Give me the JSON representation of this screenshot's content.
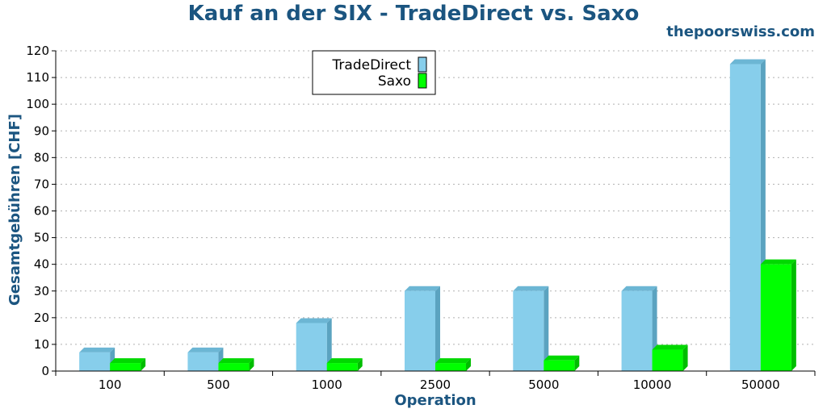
{
  "brand": "thepoorswiss.com",
  "colors": {
    "title": "#1b5580",
    "tradedirect": "#87ceeb",
    "tradedirect_side": "#5ba3c0",
    "tradedirect_top": "#6cb6d4",
    "saxo": "#00ff00",
    "saxo_side": "#00bd00",
    "saxo_top": "#00d800"
  },
  "chart_data": {
    "type": "bar",
    "title": "Kauf an der SIX - TradeDirect vs. Saxo",
    "xlabel": "Operation",
    "ylabel": "Gesamtgebühren [CHF]",
    "categories": [
      "100",
      "500",
      "1000",
      "2500",
      "5000",
      "10000",
      "50000"
    ],
    "series": [
      {
        "name": "TradeDirect",
        "values": [
          7,
          7,
          18,
          30,
          30,
          30,
          115
        ]
      },
      {
        "name": "Saxo",
        "values": [
          3,
          3,
          3,
          3,
          4,
          8,
          40
        ]
      }
    ],
    "ylim": [
      0,
      120
    ],
    "yticks": [
      0,
      10,
      20,
      30,
      40,
      50,
      60,
      70,
      80,
      90,
      100,
      110,
      120
    ],
    "grid": true,
    "legend_position": "top-center"
  }
}
